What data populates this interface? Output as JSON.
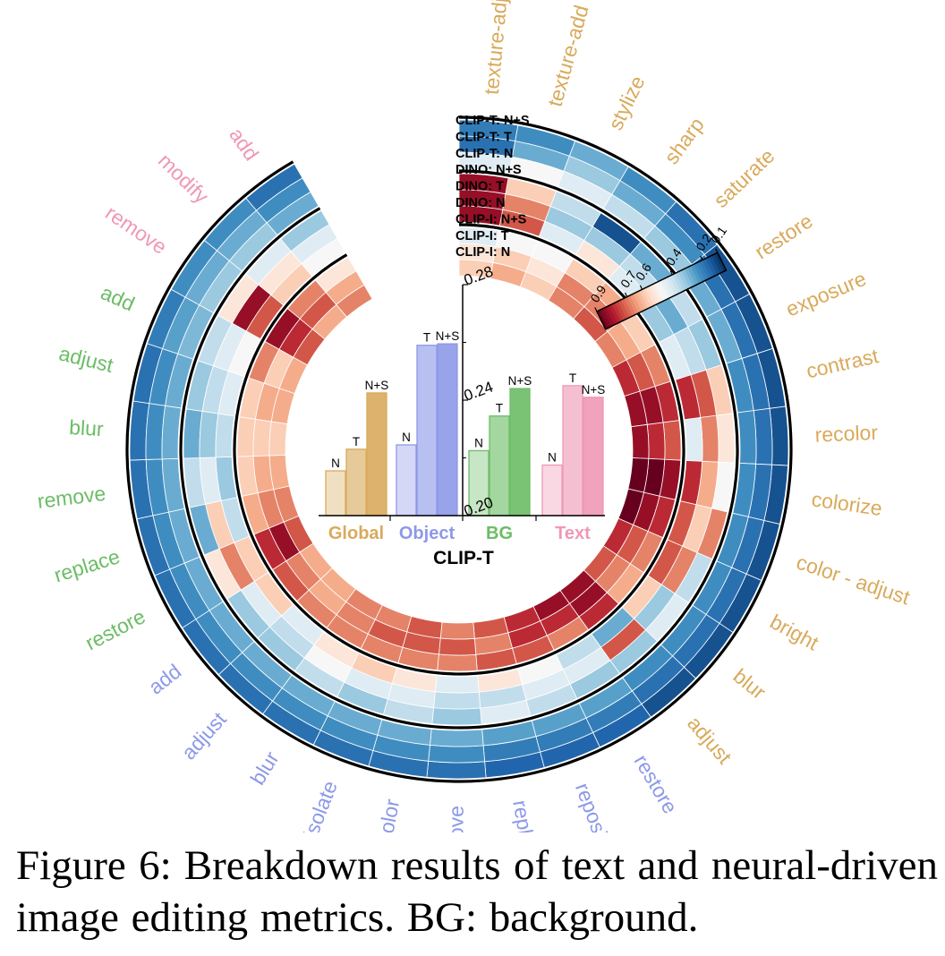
{
  "colors": {
    "global": "#d9aa5c",
    "object": "#8d99e8",
    "bg": "#6cbd66",
    "text": "#ef98b6",
    "heat_high": "#67001f",
    "heat_mid": "#f7f7f7",
    "heat_low": "#053061"
  },
  "chart_data": [
    {
      "type": "heatmap",
      "layout": "circular",
      "ring_labels": [
        "CLIP-T: N+S",
        "CLIP-T: T",
        "CLIP-T: N",
        "DINO: N+S",
        "DINO: T",
        "DINO: N",
        "CLIP-I: N+S",
        "CLIP-I: T",
        "CLIP-I: N"
      ],
      "ring_groups": [
        "CLIP-T",
        "DINO",
        "CLIP-I"
      ],
      "categories": [
        {
          "group": "Global",
          "label": "texture-adjust"
        },
        {
          "group": "Global",
          "label": "texture-add"
        },
        {
          "group": "Global",
          "label": "stylize"
        },
        {
          "group": "Global",
          "label": "sharp"
        },
        {
          "group": "Global",
          "label": "saturate"
        },
        {
          "group": "Global",
          "label": "restore"
        },
        {
          "group": "Global",
          "label": "exposure"
        },
        {
          "group": "Global",
          "label": "contrast"
        },
        {
          "group": "Global",
          "label": "recolor"
        },
        {
          "group": "Global",
          "label": "colorize"
        },
        {
          "group": "Global",
          "label": "color - adjust"
        },
        {
          "group": "Global",
          "label": "bright"
        },
        {
          "group": "Global",
          "label": "blur"
        },
        {
          "group": "Global",
          "label": "adjust"
        },
        {
          "group": "Object",
          "label": "restore"
        },
        {
          "group": "Object",
          "label": "reposit"
        },
        {
          "group": "Object",
          "label": "replace"
        },
        {
          "group": "Object",
          "label": "remove"
        },
        {
          "group": "Object",
          "label": "recolor"
        },
        {
          "group": "Object",
          "label": "isolate"
        },
        {
          "group": "Object",
          "label": "blur"
        },
        {
          "group": "Object",
          "label": "adjust"
        },
        {
          "group": "Object",
          "label": "add"
        },
        {
          "group": "BG",
          "label": "restore"
        },
        {
          "group": "BG",
          "label": "replace"
        },
        {
          "group": "BG",
          "label": "remove"
        },
        {
          "group": "BG",
          "label": "blur"
        },
        {
          "group": "BG",
          "label": "adjust"
        },
        {
          "group": "BG",
          "label": "add"
        },
        {
          "group": "Text",
          "label": "remove"
        },
        {
          "group": "Text",
          "label": "modify"
        },
        {
          "group": "Text",
          "label": "add"
        }
      ],
      "values": [
        [
          0.22,
          0.2,
          0.45,
          0.85,
          0.85,
          0.85,
          0.45,
          0.55,
          0.6
        ],
        [
          0.25,
          0.3,
          0.5,
          0.6,
          0.7,
          0.75,
          0.5,
          0.6,
          0.65
        ],
        [
          0.3,
          0.35,
          0.45,
          0.4,
          0.35,
          0.45,
          0.5,
          0.55,
          0.6
        ],
        [
          0.25,
          0.3,
          0.4,
          0.15,
          0.35,
          0.55,
          0.6,
          0.7,
          0.7
        ],
        [
          0.2,
          0.25,
          0.35,
          0.3,
          0.4,
          0.45,
          0.65,
          0.7,
          0.75
        ],
        [
          0.15,
          0.2,
          0.3,
          0.4,
          0.3,
          0.35,
          0.6,
          0.65,
          0.7
        ],
        [
          0.15,
          0.2,
          0.3,
          0.35,
          0.4,
          0.45,
          0.7,
          0.75,
          0.8
        ],
        [
          0.15,
          0.2,
          0.25,
          0.6,
          0.75,
          0.8,
          0.8,
          0.85,
          0.85
        ],
        [
          0.15,
          0.2,
          0.25,
          0.55,
          0.7,
          0.45,
          0.75,
          0.8,
          0.85
        ],
        [
          0.15,
          0.2,
          0.25,
          0.5,
          0.65,
          0.8,
          0.85,
          0.9,
          0.95
        ],
        [
          0.15,
          0.2,
          0.25,
          0.7,
          0.6,
          0.75,
          0.8,
          0.85,
          0.9
        ],
        [
          0.15,
          0.2,
          0.25,
          0.4,
          0.7,
          0.75,
          0.7,
          0.75,
          0.8
        ],
        [
          0.15,
          0.2,
          0.25,
          0.45,
          0.35,
          0.6,
          0.65,
          0.7,
          0.75
        ],
        [
          0.15,
          0.2,
          0.25,
          0.35,
          0.75,
          0.3,
          0.8,
          0.85,
          0.85
        ],
        [
          0.18,
          0.22,
          0.28,
          0.35,
          0.45,
          0.4,
          0.7,
          0.8,
          0.85
        ],
        [
          0.18,
          0.22,
          0.28,
          0.4,
          0.45,
          0.5,
          0.75,
          0.8,
          0.8
        ],
        [
          0.18,
          0.22,
          0.28,
          0.45,
          0.4,
          0.55,
          0.75,
          0.7,
          0.75
        ],
        [
          0.2,
          0.25,
          0.3,
          0.35,
          0.4,
          0.45,
          0.7,
          0.75,
          0.7
        ],
        [
          0.2,
          0.25,
          0.3,
          0.4,
          0.45,
          0.55,
          0.7,
          0.75,
          0.75
        ],
        [
          0.2,
          0.25,
          0.3,
          0.35,
          0.45,
          0.6,
          0.7,
          0.75,
          0.7
        ],
        [
          0.2,
          0.25,
          0.3,
          0.4,
          0.5,
          0.55,
          0.7,
          0.7,
          0.7
        ],
        [
          0.2,
          0.25,
          0.3,
          0.35,
          0.4,
          0.45,
          0.7,
          0.65,
          0.65
        ],
        [
          0.2,
          0.25,
          0.3,
          0.35,
          0.45,
          0.6,
          0.75,
          0.7,
          0.65
        ],
        [
          0.2,
          0.25,
          0.3,
          0.55,
          0.7,
          0.6,
          0.8,
          0.85,
          0.75
        ],
        [
          0.2,
          0.25,
          0.3,
          0.3,
          0.6,
          0.4,
          0.65,
          0.7,
          0.7
        ],
        [
          0.2,
          0.25,
          0.3,
          0.4,
          0.45,
          0.35,
          0.6,
          0.65,
          0.65
        ],
        [
          0.2,
          0.25,
          0.3,
          0.3,
          0.35,
          0.4,
          0.6,
          0.6,
          0.6
        ],
        [
          0.2,
          0.25,
          0.3,
          0.35,
          0.4,
          0.45,
          0.6,
          0.65,
          0.65
        ],
        [
          0.22,
          0.28,
          0.32,
          0.4,
          0.45,
          0.5,
          0.7,
          0.6,
          0.65
        ],
        [
          0.25,
          0.3,
          0.35,
          0.55,
          0.85,
          0.75,
          0.85,
          0.8,
          0.75
        ],
        [
          0.25,
          0.3,
          0.35,
          0.45,
          0.55,
          0.6,
          0.7,
          0.75,
          0.65
        ],
        [
          0.2,
          0.25,
          0.3,
          0.35,
          0.45,
          0.5,
          0.55,
          0.65,
          0.7
        ]
      ],
      "colorbar": {
        "ticks": [
          "0.9",
          "0.7",
          "0.6",
          "0.4",
          "0.2",
          "0.1"
        ],
        "range": [
          0.1,
          0.9
        ],
        "colormap": "RdBu"
      }
    },
    {
      "type": "bar",
      "title": "CLIP-T",
      "categories": [
        "Global",
        "Object",
        "BG",
        "Text"
      ],
      "series": [
        {
          "name": "N",
          "values": [
            0.2155,
            0.2245,
            0.2225,
            0.2175
          ]
        },
        {
          "name": "T",
          "values": [
            0.223,
            0.259,
            0.2345,
            0.245
          ]
        },
        {
          "name": "N+S",
          "values": [
            0.2425,
            0.2595,
            0.244,
            0.241
          ]
        }
      ],
      "ylim": [
        0.2,
        0.28
      ],
      "yticks": [
        "0.20",
        "0.24",
        "0.28"
      ],
      "ylabel": ""
    }
  ],
  "caption": {
    "label": "Figure 6:",
    "text": "Breakdown results of text and neural-driven image editing metrics. BG: background."
  }
}
